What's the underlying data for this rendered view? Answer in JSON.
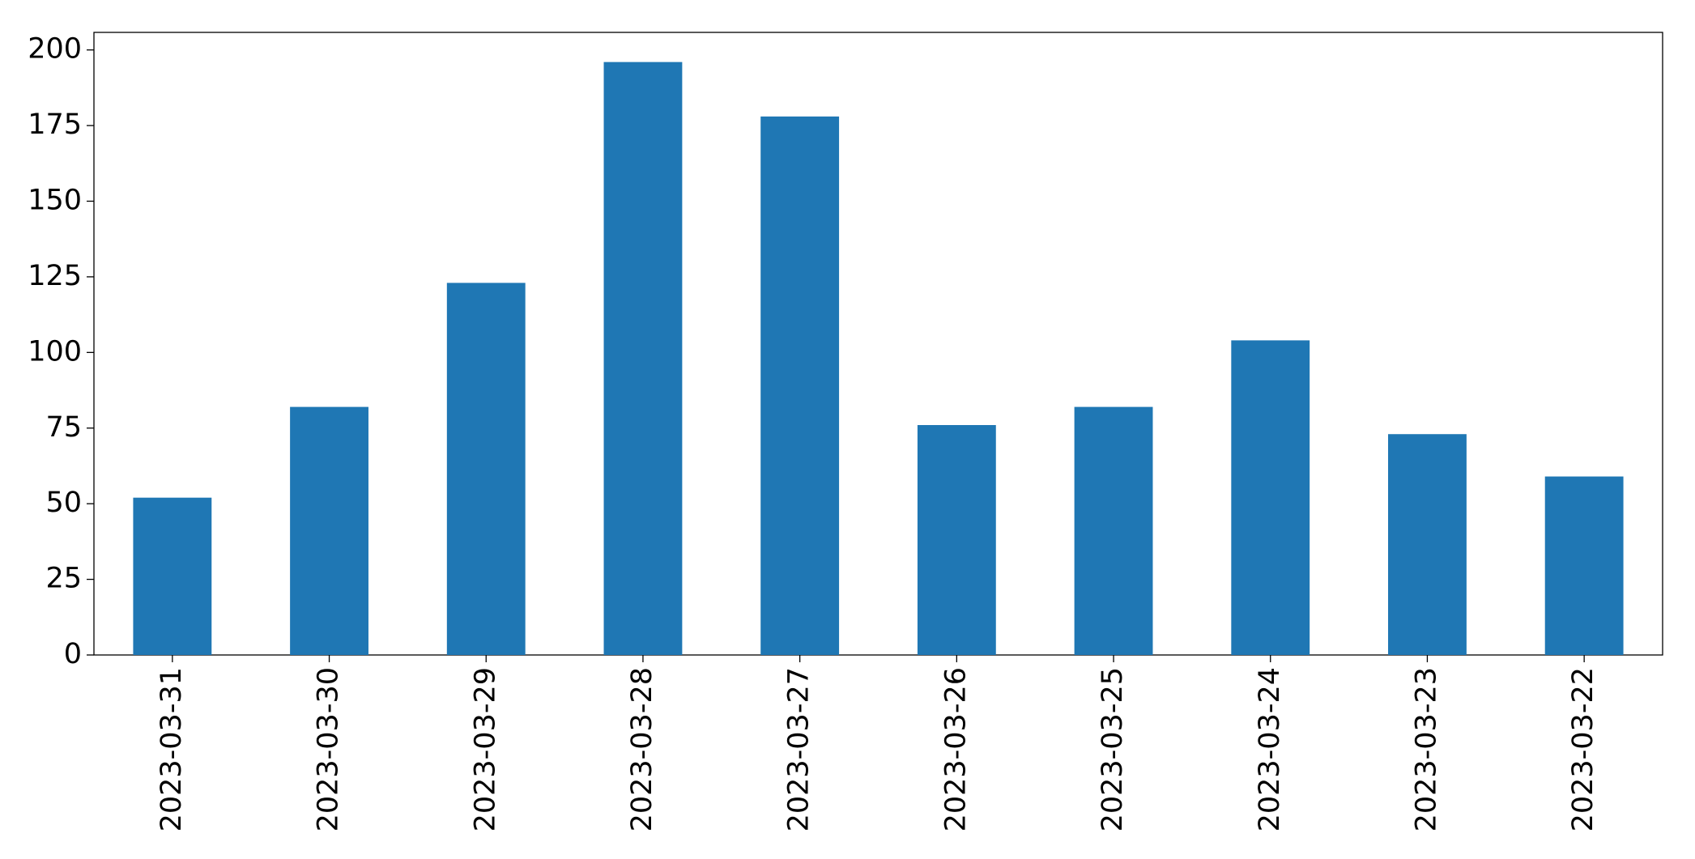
{
  "chart_data": {
    "type": "bar",
    "categories": [
      "2023-03-31",
      "2023-03-30",
      "2023-03-29",
      "2023-03-28",
      "2023-03-27",
      "2023-03-26",
      "2023-03-25",
      "2023-03-24",
      "2023-03-23",
      "2023-03-22"
    ],
    "values": [
      52,
      82,
      123,
      196,
      178,
      76,
      82,
      104,
      73,
      59
    ],
    "color": "#1f77b4",
    "ylim": [
      0,
      205.8
    ],
    "yticks": [
      0,
      25,
      50,
      75,
      100,
      125,
      150,
      175,
      200
    ],
    "grid": false
  }
}
